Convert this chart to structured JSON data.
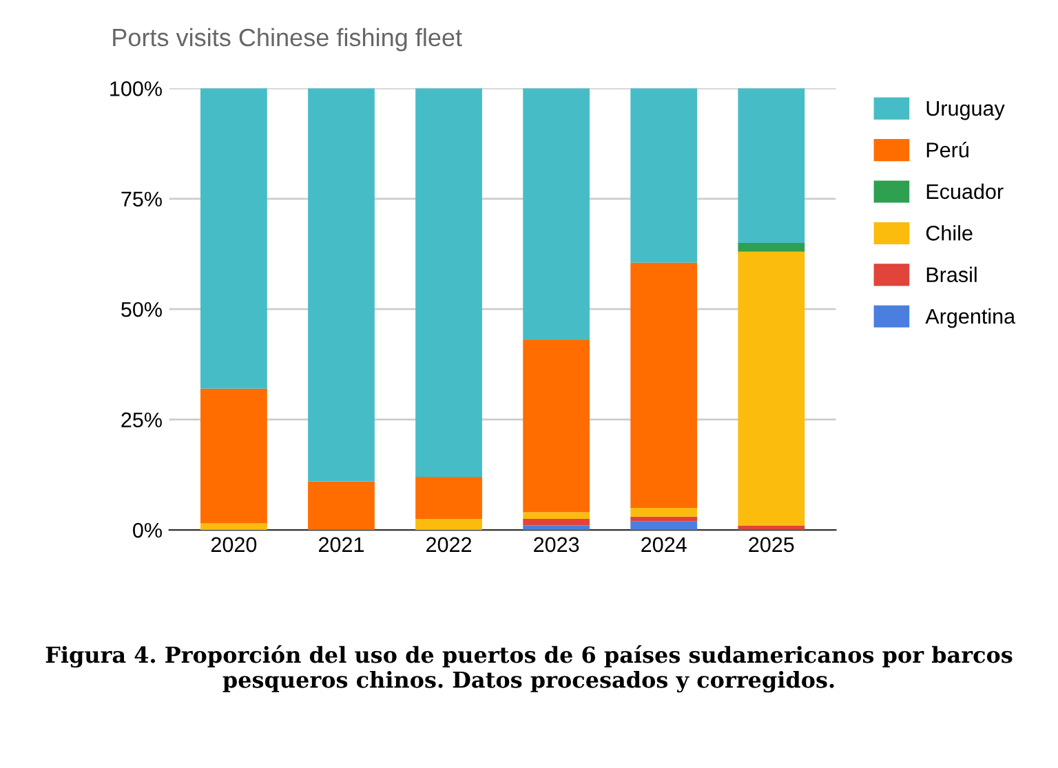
{
  "chart_data": {
    "type": "bar",
    "stacked": true,
    "title": "Ports visits Chinese fishing fleet",
    "categories": [
      "2020",
      "2021",
      "2022",
      "2023",
      "2024",
      "2025"
    ],
    "series": [
      {
        "name": "Argentina",
        "color": "#4a7fe0",
        "values": [
          0,
          0,
          0,
          1,
          2,
          0
        ]
      },
      {
        "name": "Brasil",
        "color": "#e0443a",
        "values": [
          0,
          0,
          0,
          1.5,
          1,
          1
        ]
      },
      {
        "name": "Chile",
        "color": "#fbbc0d",
        "values": [
          1.5,
          0,
          2.5,
          1.5,
          2,
          62
        ]
      },
      {
        "name": "Ecuador",
        "color": "#2ea04f",
        "values": [
          0,
          0,
          0,
          0,
          0,
          2
        ]
      },
      {
        "name": "Perú",
        "color": "#ff6d01",
        "values": [
          30.5,
          11,
          9.5,
          39,
          55.5,
          0
        ]
      },
      {
        "name": "Uruguay",
        "color": "#46bdc6",
        "values": [
          68,
          89,
          88,
          57,
          39.5,
          35
        ]
      }
    ],
    "ylim": [
      0,
      100
    ],
    "yticks": [
      {
        "value": 0,
        "label": "0%"
      },
      {
        "value": 25,
        "label": "25%"
      },
      {
        "value": 50,
        "label": "50%"
      },
      {
        "value": 75,
        "label": "75%"
      },
      {
        "value": 100,
        "label": "100%"
      }
    ],
    "grid": "y",
    "legend": "right",
    "annotations": [
      "Figura 4. Proporción del uso de puertos de 6 países sudamericanos por barcos pesqueros chinos. Datos procesados y corregidos."
    ]
  }
}
